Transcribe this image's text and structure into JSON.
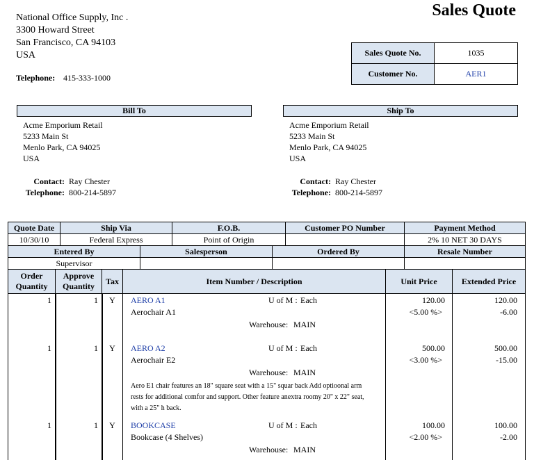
{
  "company": {
    "name": "National Office Supply, Inc .",
    "address": [
      "3300  Howard Street",
      "San Francisco, CA 94103",
      "USA"
    ],
    "telephone_label": "Telephone:",
    "telephone": "415-333-1000"
  },
  "title": "Sales Quote",
  "quote_info": [
    {
      "label": "Sales Quote No.",
      "value": "1035"
    },
    {
      "label": "Customer No.",
      "value": "AER1"
    }
  ],
  "bill_to": {
    "heading": "Bill To",
    "lines": [
      "Acme Emporium Retail",
      "5233  Main St",
      "Menlo Park, CA  94025",
      "USA"
    ],
    "contact_label": "Contact:",
    "contact": "Ray Chester",
    "telephone_label": "Telephone:",
    "telephone": "800-214-5897"
  },
  "ship_to": {
    "heading": "Ship To",
    "lines": [
      "Acme Emporium Retail",
      "5233  Main St",
      "Menlo Park, CA  94025",
      "USA"
    ],
    "contact_label": "Contact:",
    "contact": "Ray Chester",
    "telephone_label": "Telephone:",
    "telephone": "800-214-5897"
  },
  "order_table": {
    "row1": {
      "headers": [
        "Quote Date",
        "Ship Via",
        "F.O.B.",
        "Customer PO Number",
        "Payment Method"
      ],
      "values": [
        "10/30/10",
        "Federal Express",
        "Point of Origin",
        null,
        "2% 10 NET 30 DAYS"
      ]
    },
    "row2": {
      "headers": [
        "Entered By",
        "Salesperson",
        "Ordered By",
        "Resale Number"
      ],
      "values": [
        "Supervisor",
        null,
        null,
        null
      ]
    }
  },
  "items_table": {
    "headers": [
      "Order Quantity",
      "Approve Quantity",
      "Tax",
      "Item Number / Description",
      "Unit Price",
      "Extended Price"
    ],
    "items": [
      {
        "order_qty": 1,
        "approve_qty": 1,
        "tax": "Y",
        "item_number": "AERO A1",
        "uom_label": "U of M :",
        "uom": "Each",
        "description": "Aerochair A1",
        "warehouse_label": "Warehouse:",
        "warehouse": "MAIN",
        "unit_price": "120.00",
        "discount": "<5.00 %>",
        "extended_price": "120.00",
        "discount_amount": "-6.00"
      },
      {
        "order_qty": 1,
        "approve_qty": 1,
        "tax": "Y",
        "item_number": "AERO A2",
        "uom_label": "U of M :",
        "uom": "Each",
        "description": "Aerochair E2",
        "warehouse_label": "Warehouse:",
        "warehouse": "MAIN",
        "unit_price": "500.00",
        "discount": "<3.00 %>",
        "extended_price": "500.00",
        "discount_amount": "-15.00",
        "note": "Aero E1 chair features an 18\" square seat with a 15\" squar back  Add optioonal arm rests for additional comfor and support.  Other feature anextra roomy 20\" x 22\" seat, with a 25\" h back."
      },
      {
        "order_qty": 1,
        "approve_qty": 1,
        "tax": "Y",
        "item_number": "BOOKCASE",
        "uom_label": "U of M :",
        "uom": "Each",
        "description": "Bookcase (4 Shelves)",
        "warehouse_label": "Warehouse:",
        "warehouse": "MAIN",
        "unit_price": "100.00",
        "discount": "<2.00 %>",
        "extended_price": "100.00",
        "discount_amount": "-2.00"
      }
    ]
  }
}
